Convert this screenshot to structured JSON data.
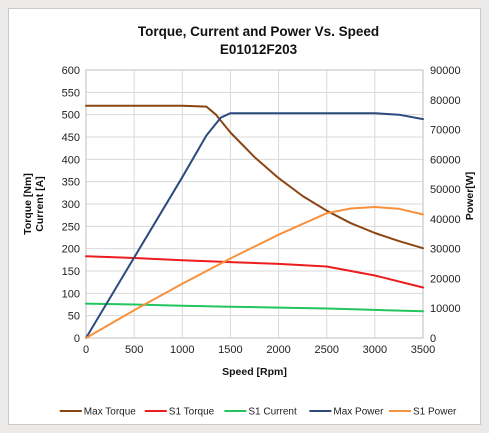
{
  "chart_data": {
    "type": "line",
    "title": "Torque, Current and Power Vs. Speed",
    "subtitle": "E01012F203",
    "xlabel": "Speed [Rpm]",
    "ylabel_lines": [
      "Torque [Nm]",
      "Current [A]"
    ],
    "y2label": "Power[W]",
    "xlim": [
      0,
      3500
    ],
    "ylim": [
      0,
      600
    ],
    "y2lim": [
      0,
      90000
    ],
    "x_ticks": [
      0,
      500,
      1000,
      1500,
      2000,
      2500,
      3000,
      3500
    ],
    "y_ticks": [
      0,
      50,
      100,
      150,
      200,
      250,
      300,
      350,
      400,
      450,
      500,
      550,
      600
    ],
    "y2_ticks": [
      0,
      10000,
      20000,
      30000,
      40000,
      50000,
      60000,
      70000,
      80000,
      90000
    ],
    "grid": true,
    "legend_position": "bottom",
    "series": [
      {
        "name": "Max Torque",
        "axis": "left",
        "color": "#8b4513",
        "x": [
          0,
          500,
          1000,
          1250,
          1350,
          1500,
          1750,
          2000,
          2250,
          2500,
          2750,
          3000,
          3250,
          3500
        ],
        "y": [
          520,
          520,
          520,
          518,
          500,
          460,
          405,
          358,
          318,
          285,
          257,
          235,
          217,
          201
        ]
      },
      {
        "name": "S1 Torque",
        "axis": "left",
        "color": "#ee1c1c",
        "x": [
          0,
          500,
          1000,
          1500,
          2000,
          2500,
          3000,
          3500
        ],
        "y": [
          183,
          179,
          174,
          170,
          166,
          160,
          140,
          113
        ]
      },
      {
        "name": "S1 Current",
        "axis": "left",
        "color": "#22c55e",
        "x": [
          0,
          500,
          1000,
          1500,
          2000,
          2500,
          3000,
          3500
        ],
        "y": [
          77,
          75,
          72,
          70,
          68,
          66,
          63,
          60
        ]
      },
      {
        "name": "Max Power",
        "axis": "right",
        "color": "#2c4a7c",
        "x": [
          0,
          500,
          1000,
          1250,
          1400,
          1500,
          1750,
          2000,
          2500,
          3000,
          3250,
          3500
        ],
        "y": [
          0,
          27000,
          54000,
          68000,
          74000,
          75500,
          75500,
          75500,
          75500,
          75500,
          75000,
          73500
        ]
      },
      {
        "name": "S1 Power",
        "axis": "right",
        "color": "#f7913d",
        "x": [
          0,
          500,
          1000,
          1500,
          2000,
          2500,
          2750,
          3000,
          3250,
          3500
        ],
        "y": [
          0,
          9300,
          18200,
          26700,
          34700,
          41900,
          43500,
          44000,
          43400,
          41500
        ]
      }
    ]
  }
}
